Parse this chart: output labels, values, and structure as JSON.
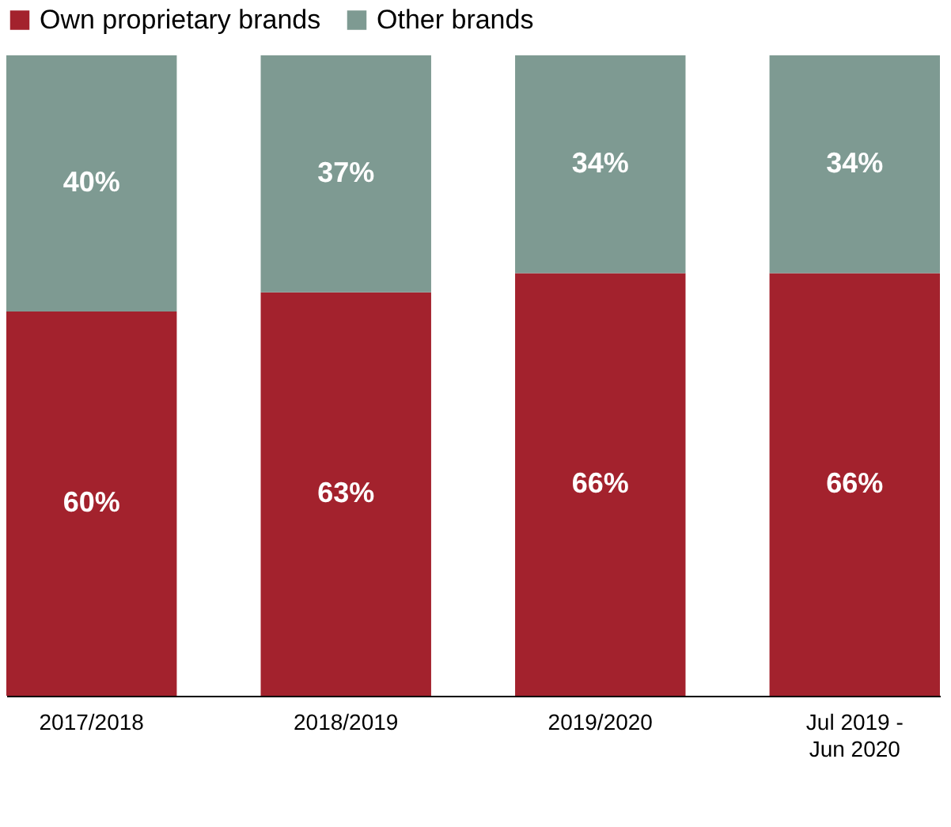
{
  "chart_data": {
    "type": "bar",
    "stacked": true,
    "categories": [
      "2017/2018",
      "2018/2019",
      "2019/2020",
      "Jul 2019 - Jun 2020"
    ],
    "series": [
      {
        "name": "Own proprietary brands",
        "color": "#a3222d",
        "values": [
          60,
          63,
          66,
          66
        ],
        "value_labels": [
          "60%",
          "63%",
          "66%",
          "66%"
        ]
      },
      {
        "name": "Other brands",
        "color": "#7e9a92",
        "values": [
          40,
          37,
          34,
          34
        ],
        "value_labels": [
          "40%",
          "37%",
          "34%",
          "34%"
        ]
      }
    ],
    "ylim": [
      0,
      100
    ],
    "legend": "top left",
    "tick_labels": "x"
  }
}
